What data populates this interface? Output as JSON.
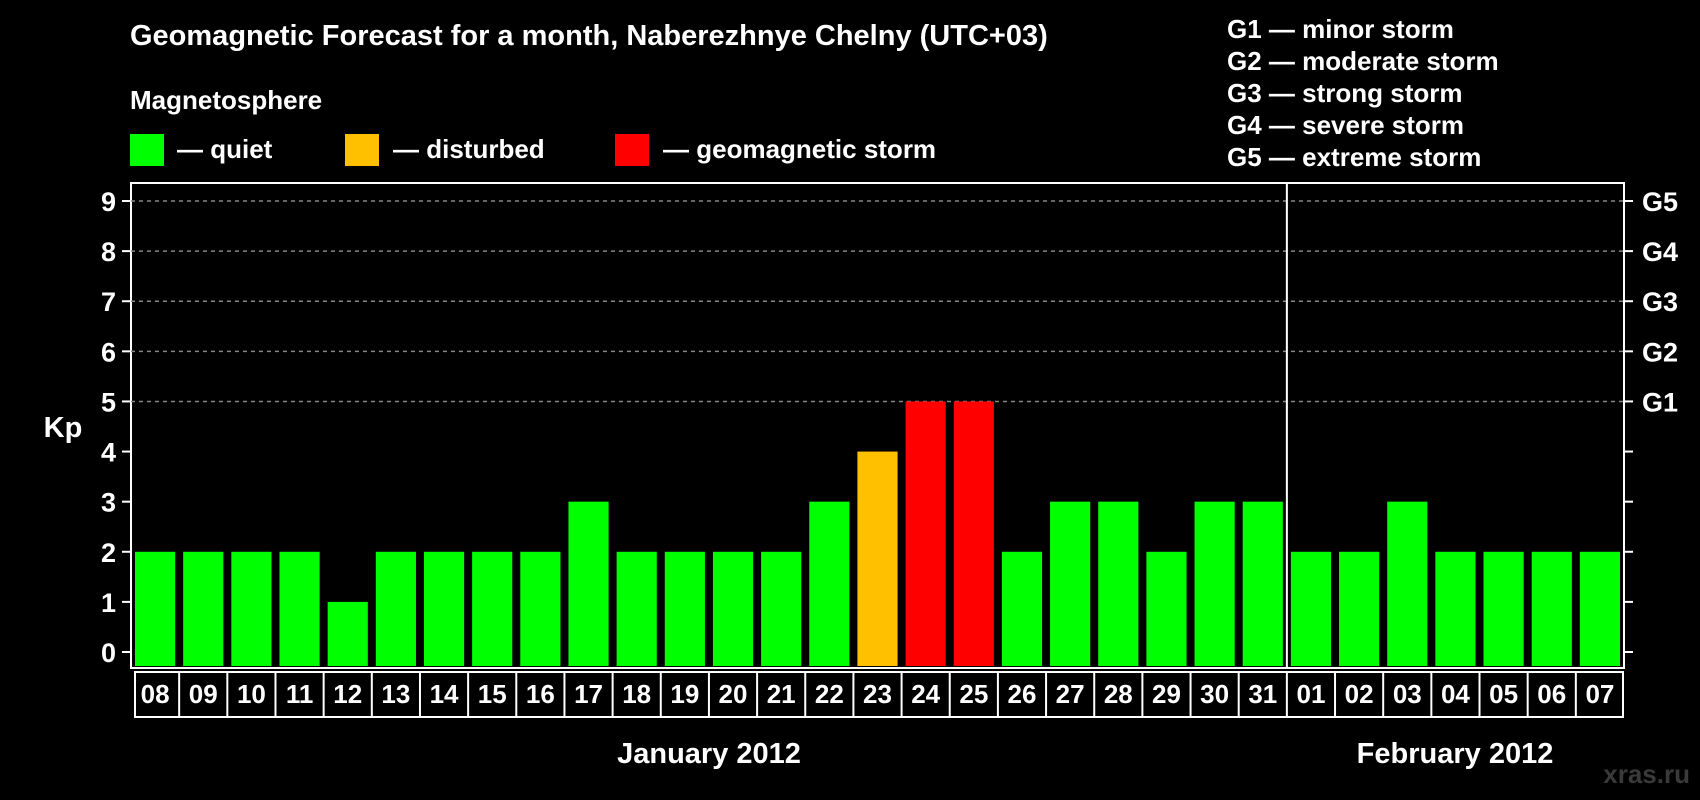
{
  "title": "Geomagnetic Forecast for a month, Naberezhnye Chelny (UTC+03)",
  "legend": {
    "heading": "Magnetosphere",
    "items": [
      {
        "label": "— quiet",
        "color": "#00ff00"
      },
      {
        "label": "— disturbed",
        "color": "#ffc000"
      },
      {
        "label": "— geomagnetic storm",
        "color": "#ff0000"
      }
    ]
  },
  "storm_scale": [
    "G1 — minor storm",
    "G2 — moderate storm",
    "G3 — strong storm",
    "G4 — severe storm",
    "G5 — extreme storm"
  ],
  "watermark": "xras.ru",
  "chart_data": {
    "type": "bar",
    "ylabel": "Kp",
    "ylim": [
      0,
      9
    ],
    "yticks": [
      0,
      1,
      2,
      3,
      4,
      5,
      6,
      7,
      8,
      9
    ],
    "right_axis_labels": [
      {
        "value": 5,
        "label": "G1"
      },
      {
        "value": 6,
        "label": "G2"
      },
      {
        "value": 7,
        "label": "G3"
      },
      {
        "value": 8,
        "label": "G4"
      },
      {
        "value": 9,
        "label": "G5"
      }
    ],
    "grid": "horizontal dashed at 5–9",
    "categories": [
      "08",
      "09",
      "10",
      "11",
      "12",
      "13",
      "14",
      "15",
      "16",
      "17",
      "18",
      "19",
      "20",
      "21",
      "22",
      "23",
      "24",
      "25",
      "26",
      "27",
      "28",
      "29",
      "30",
      "31",
      "01",
      "02",
      "03",
      "04",
      "05",
      "06",
      "07"
    ],
    "values": [
      2,
      2,
      2,
      2,
      1,
      2,
      2,
      2,
      2,
      3,
      2,
      2,
      2,
      2,
      3,
      4,
      5,
      5,
      2,
      3,
      3,
      2,
      3,
      3,
      2,
      2,
      3,
      2,
      2,
      2,
      2
    ],
    "colors": [
      "#00ff00",
      "#00ff00",
      "#00ff00",
      "#00ff00",
      "#00ff00",
      "#00ff00",
      "#00ff00",
      "#00ff00",
      "#00ff00",
      "#00ff00",
      "#00ff00",
      "#00ff00",
      "#00ff00",
      "#00ff00",
      "#00ff00",
      "#ffc000",
      "#ff0000",
      "#ff0000",
      "#00ff00",
      "#00ff00",
      "#00ff00",
      "#00ff00",
      "#00ff00",
      "#00ff00",
      "#00ff00",
      "#00ff00",
      "#00ff00",
      "#00ff00",
      "#00ff00",
      "#00ff00",
      "#00ff00"
    ],
    "months": [
      {
        "label": "January 2012",
        "categories": [
          "08",
          "31"
        ]
      },
      {
        "label": "February 2012",
        "categories": [
          "01",
          "07"
        ]
      }
    ]
  }
}
